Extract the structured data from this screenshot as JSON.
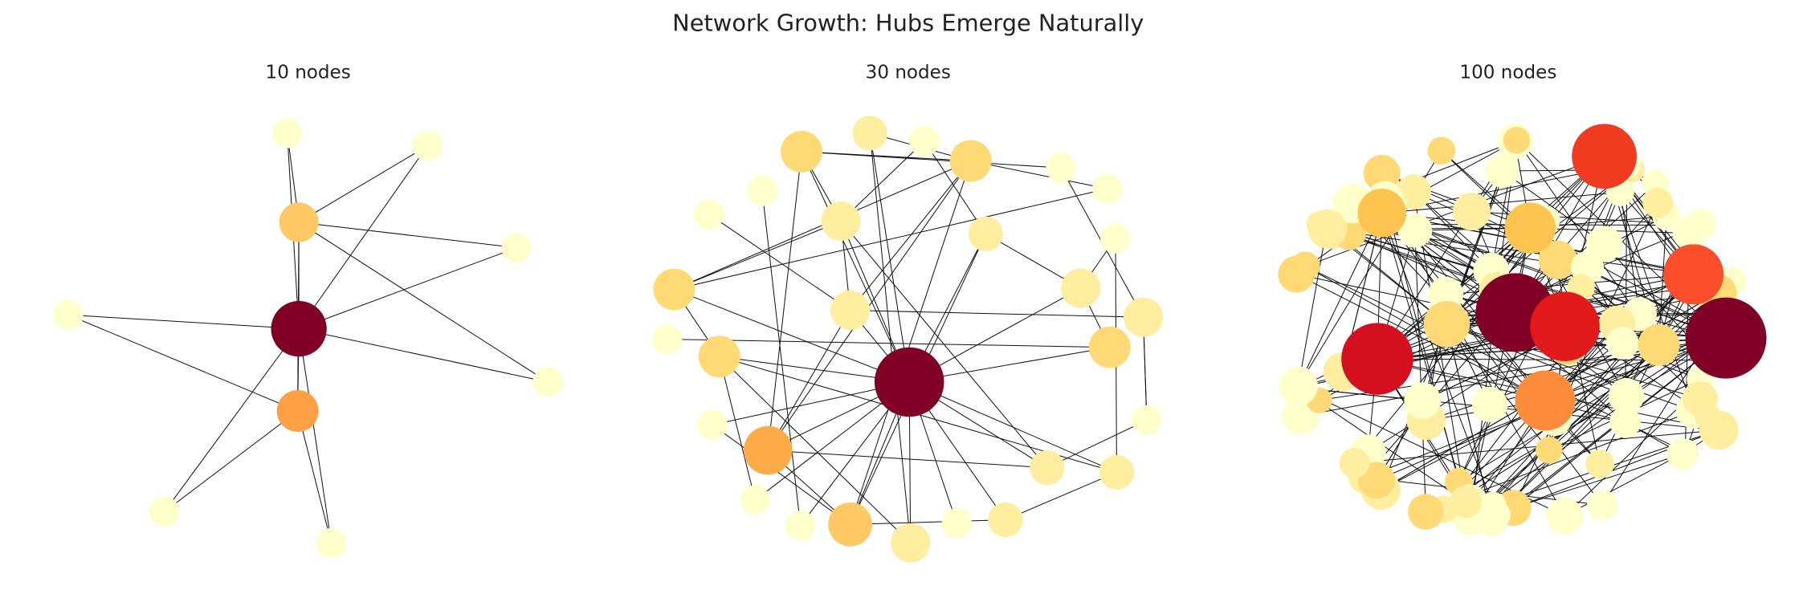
{
  "title": "Network Growth: Hubs Emerge Naturally",
  "panels": [
    {
      "title": "10 nodes"
    },
    {
      "title": "30 nodes"
    },
    {
      "title": "100 nodes"
    }
  ]
}
